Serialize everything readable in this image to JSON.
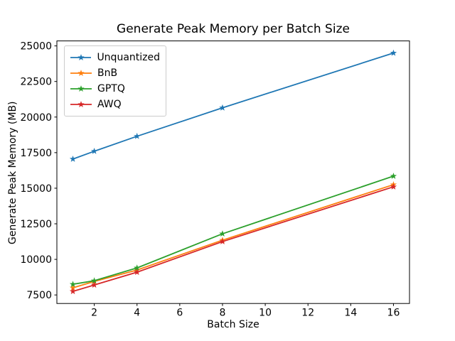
{
  "chart_data": {
    "type": "line",
    "title": "Generate Peak Memory per Batch Size",
    "xlabel": "Batch Size",
    "ylabel": "Generate Peak Memory (MB)",
    "x": [
      1,
      2,
      4,
      8,
      16
    ],
    "series": [
      {
        "name": "Unquantized",
        "color": "#1f77b4",
        "values": [
          17050,
          17600,
          18650,
          20650,
          24500
        ]
      },
      {
        "name": "BnB",
        "color": "#ff7f0e",
        "values": [
          8000,
          8450,
          9250,
          11350,
          15250
        ]
      },
      {
        "name": "GPTQ",
        "color": "#2ca02c",
        "values": [
          8250,
          8500,
          9400,
          11800,
          15850
        ]
      },
      {
        "name": "AWQ",
        "color": "#d62728",
        "values": [
          7750,
          8200,
          9100,
          11250,
          15100
        ]
      }
    ],
    "marker": "star",
    "grid": false,
    "legend_position": "upper left",
    "xlim": [
      0.25,
      16.75
    ],
    "ylim": [
      6900,
      25350
    ],
    "xticks": [
      2,
      4,
      6,
      8,
      10,
      12,
      14,
      16
    ],
    "yticks": [
      7500,
      10000,
      12500,
      15000,
      17500,
      20000,
      22500,
      25000
    ],
    "axis_color": "#000000",
    "background_color": "#ffffff"
  }
}
